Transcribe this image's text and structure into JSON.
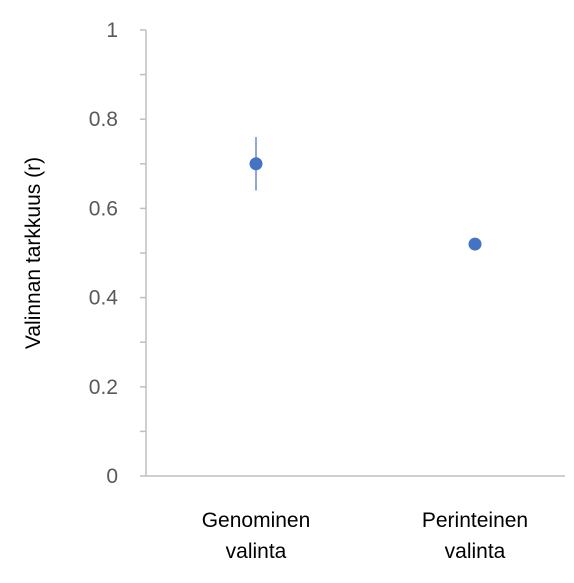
{
  "chart_data": {
    "type": "scatter",
    "title": "",
    "xlabel": "",
    "ylabel": "Valinnan tarkkuus (r)",
    "ylim": [
      0,
      1
    ],
    "yticks": [
      0,
      0.2,
      0.4,
      0.6,
      0.8,
      1
    ],
    "ytick_labels": [
      "0",
      "0.2",
      "0.4",
      "0.6",
      "0.8",
      "1"
    ],
    "categories": [
      [
        "Genominen",
        "valinta"
      ],
      [
        "Perinteinen",
        "valinta"
      ]
    ],
    "points": [
      {
        "category_index": 0,
        "y": 0.7,
        "err_low": 0.64,
        "err_high": 0.76
      },
      {
        "category_index": 1,
        "y": 0.52
      }
    ],
    "grid": false,
    "legend": "none",
    "colors": {
      "marker": "#4472C4",
      "axis": "#bfbfbf",
      "tick_text": "#595959"
    }
  }
}
